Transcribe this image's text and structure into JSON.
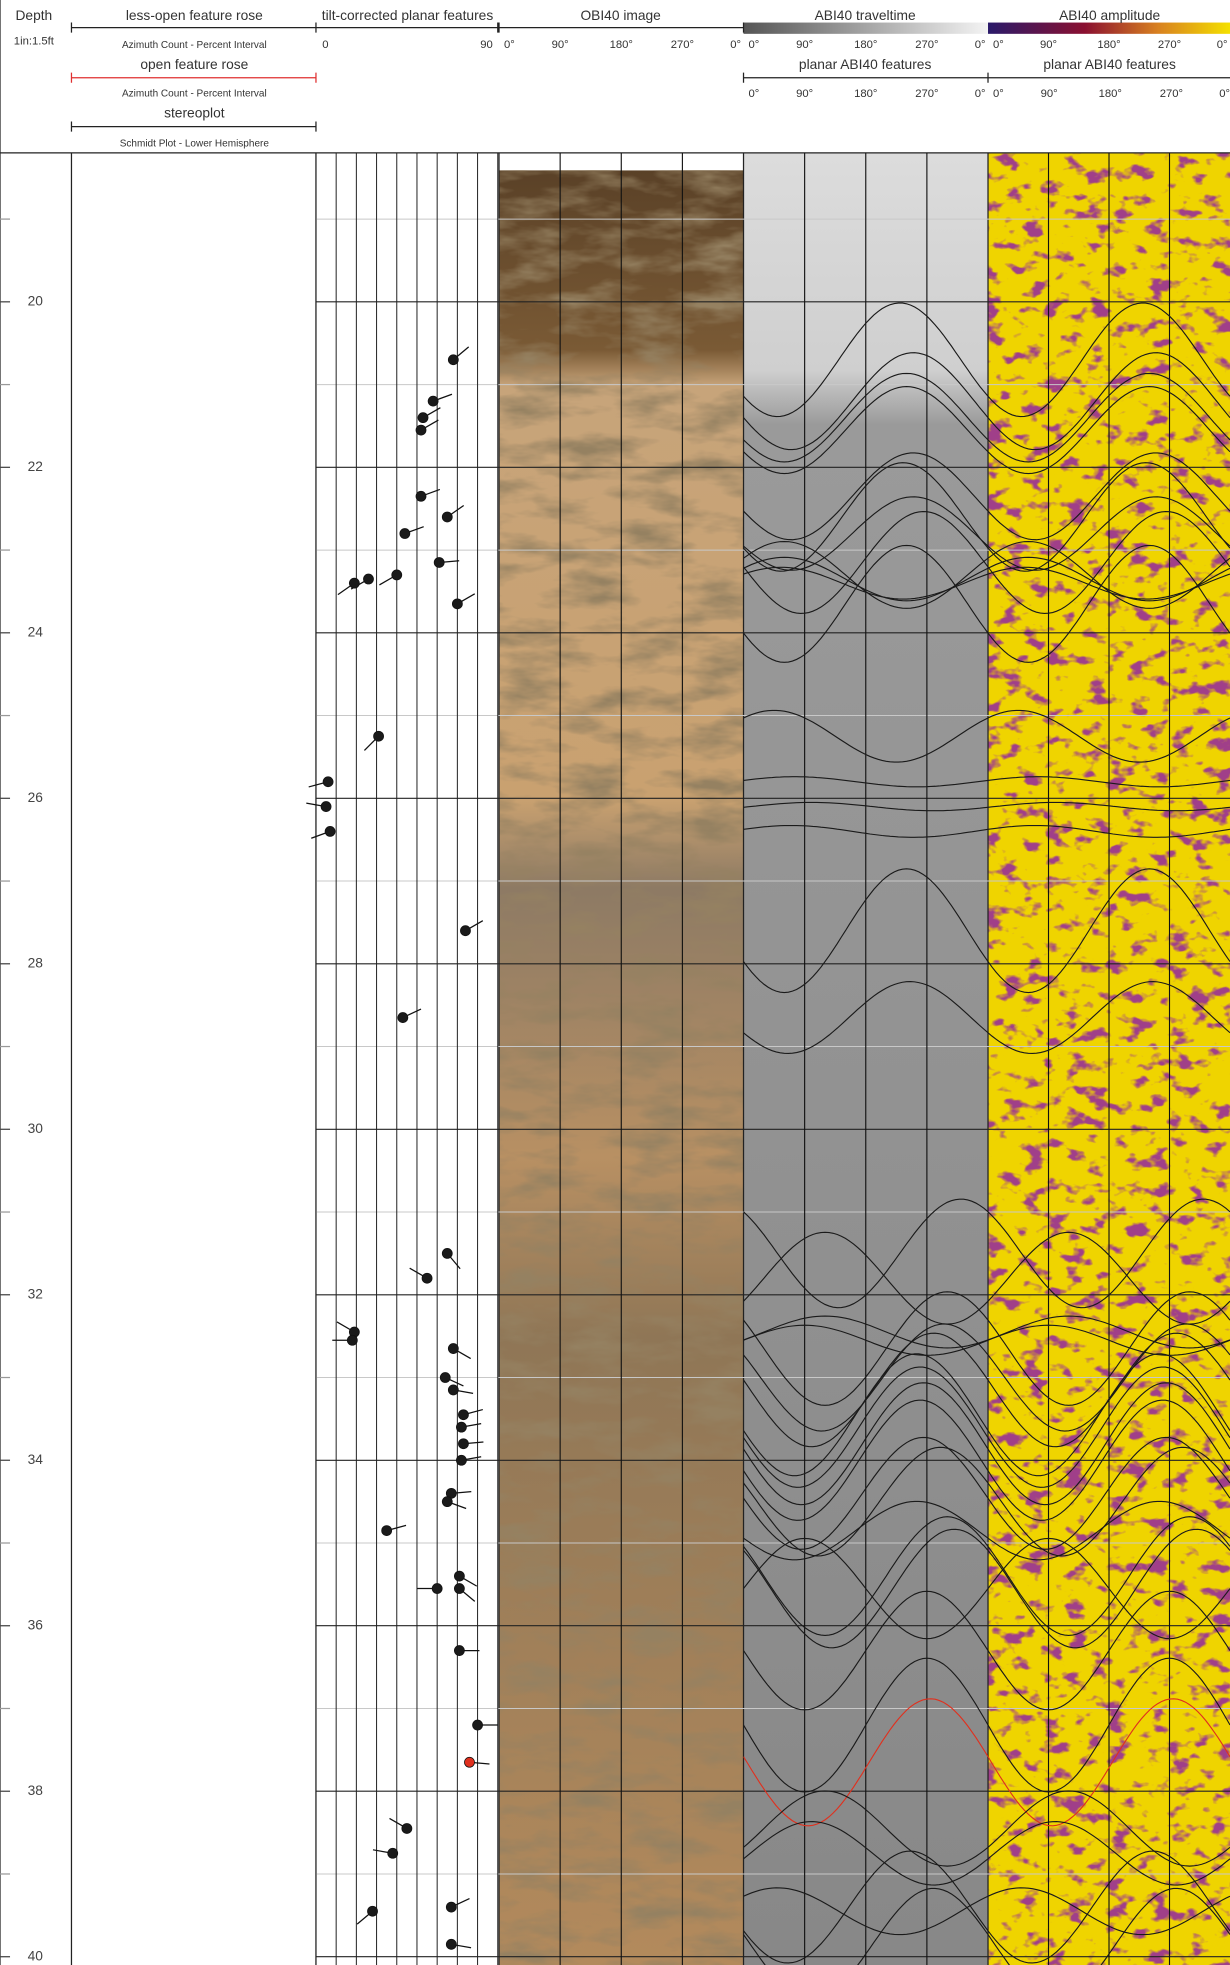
{
  "header": {
    "depth": "Depth",
    "scale": "1in:1.5ft",
    "rose": {
      "title": "less-open feature rose",
      "subtitle": "Azimuth Count - Percent Interval",
      "open_title": "open feature rose",
      "open_subtitle": "Azimuth Count - Percent Interval",
      "stereo_title": "stereoplot",
      "stereo_subtitle": "Schmidt Plot - Lower Hemisphere"
    },
    "tadpole": {
      "title": "tilt-corrected planar features",
      "min_label": "0",
      "max_label": "90"
    },
    "obi": {
      "title": "OBI40 image"
    },
    "traveltime": {
      "title": "ABI40 traveltime",
      "features": "planar ABI40 features"
    },
    "amplitude": {
      "title": "ABI40 amplitude",
      "features": "planar ABI40 features"
    },
    "azimuth_ticks": [
      {
        "value": 0,
        "label": "0°"
      },
      {
        "value": 90,
        "label": "90°"
      },
      {
        "value": 180,
        "label": "180°"
      },
      {
        "value": 270,
        "label": "270°"
      },
      {
        "value": 360,
        "label": "0°"
      }
    ]
  },
  "depth_axis": {
    "lim": [
      18.2,
      40.1
    ],
    "ticks": [
      20,
      22,
      24,
      26,
      28,
      30,
      32,
      34,
      36,
      38,
      40
    ],
    "minor": [
      19,
      21,
      23,
      25,
      27,
      29,
      31,
      33,
      35,
      37,
      39
    ]
  },
  "dip_axis": {
    "lim": [
      0,
      90
    ],
    "grid": [
      0,
      10,
      20,
      30,
      40,
      50,
      60,
      70,
      80,
      90
    ]
  },
  "feature_color": "#1a1a1a",
  "features": [
    {
      "depth": 20.7,
      "dip": 68,
      "azimuth": 50
    },
    {
      "depth": 21.2,
      "dip": 58,
      "azimuth": 70
    },
    {
      "depth": 21.4,
      "dip": 53,
      "azimuth": 60
    },
    {
      "depth": 21.55,
      "dip": 52,
      "azimuth": 60
    },
    {
      "depth": 22.35,
      "dip": 52,
      "azimuth": 70
    },
    {
      "depth": 22.6,
      "dip": 65,
      "azimuth": 55
    },
    {
      "depth": 22.8,
      "dip": 44,
      "azimuth": 70
    },
    {
      "depth": 23.15,
      "dip": 61,
      "azimuth": 85
    },
    {
      "depth": 23.3,
      "dip": 40,
      "azimuth": 240
    },
    {
      "depth": 23.35,
      "dip": 26,
      "azimuth": 240
    },
    {
      "depth": 23.4,
      "dip": 19,
      "azimuth": 235
    },
    {
      "depth": 23.65,
      "dip": 70,
      "azimuth": 60
    },
    {
      "depth": 25.25,
      "dip": 31,
      "azimuth": 225
    },
    {
      "depth": 25.8,
      "dip": 6,
      "azimuth": 255
    },
    {
      "depth": 26.1,
      "dip": 5,
      "azimuth": 280
    },
    {
      "depth": 26.4,
      "dip": 7,
      "azimuth": 250
    },
    {
      "depth": 27.6,
      "dip": 74,
      "azimuth": 60
    },
    {
      "depth": 28.65,
      "dip": 43,
      "azimuth": 65
    },
    {
      "depth": 31.5,
      "dip": 65,
      "azimuth": 140
    },
    {
      "depth": 31.8,
      "dip": 55,
      "azimuth": 300
    },
    {
      "depth": 32.45,
      "dip": 19,
      "azimuth": 300
    },
    {
      "depth": 32.55,
      "dip": 18,
      "azimuth": 270
    },
    {
      "depth": 32.65,
      "dip": 68,
      "azimuth": 120
    },
    {
      "depth": 33.0,
      "dip": 64,
      "azimuth": 115
    },
    {
      "depth": 33.15,
      "dip": 68,
      "azimuth": 100
    },
    {
      "depth": 33.45,
      "dip": 73,
      "azimuth": 75
    },
    {
      "depth": 33.6,
      "dip": 72,
      "azimuth": 80
    },
    {
      "depth": 33.8,
      "dip": 73,
      "azimuth": 85
    },
    {
      "depth": 34.0,
      "dip": 72,
      "azimuth": 80
    },
    {
      "depth": 34.4,
      "dip": 67,
      "azimuth": 85
    },
    {
      "depth": 34.5,
      "dip": 65,
      "azimuth": 110
    },
    {
      "depth": 34.85,
      "dip": 35,
      "azimuth": 75
    },
    {
      "depth": 35.4,
      "dip": 71,
      "azimuth": 120
    },
    {
      "depth": 35.55,
      "dip": 60,
      "azimuth": 270
    },
    {
      "depth": 35.55,
      "dip": 71,
      "azimuth": 130
    },
    {
      "depth": 36.3,
      "dip": 71,
      "azimuth": 90
    },
    {
      "depth": 37.2,
      "dip": 80,
      "azimuth": 90
    },
    {
      "depth": 37.65,
      "dip": 76,
      "azimuth": 95,
      "color": "#e0301e"
    },
    {
      "depth": 38.45,
      "dip": 45,
      "azimuth": 300
    },
    {
      "depth": 38.75,
      "dip": 38,
      "azimuth": 280
    },
    {
      "depth": 39.4,
      "dip": 67,
      "azimuth": 65
    },
    {
      "depth": 39.45,
      "dip": 28,
      "azimuth": 230
    },
    {
      "depth": 39.85,
      "dip": 67,
      "azimuth": 100
    }
  ]
}
